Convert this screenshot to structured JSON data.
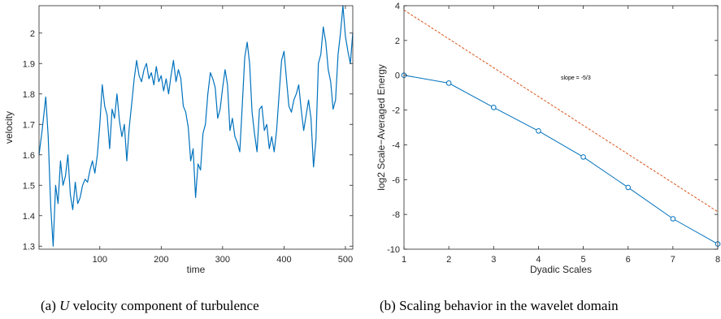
{
  "chart_data": [
    {
      "type": "line",
      "title": "",
      "xlabel": "time",
      "ylabel": "velocity",
      "xlim": [
        1,
        512
      ],
      "ylim": [
        1.29,
        2.09
      ],
      "xticks": [
        100,
        200,
        300,
        400,
        500
      ],
      "yticks": [
        1.3,
        1.4,
        1.5,
        1.6,
        1.7,
        1.8,
        1.9,
        2.0
      ],
      "ytick_labels": [
        "1.3",
        "1.4",
        "1.5",
        "1.6",
        "1.7",
        "1.8",
        "1.9",
        "2"
      ],
      "color": "#0072BD",
      "grid": false,
      "series": [
        {
          "x": [
            1,
            6,
            12,
            16,
            20,
            24,
            28,
            32,
            36,
            40,
            44,
            48,
            52,
            56,
            60,
            64,
            68,
            72,
            76,
            80,
            84,
            88,
            92,
            96,
            100,
            104,
            108,
            112,
            116,
            120,
            124,
            128,
            132,
            136,
            140,
            144,
            148,
            152,
            156,
            160,
            164,
            168,
            172,
            176,
            180,
            184,
            188,
            192,
            196,
            200,
            204,
            208,
            212,
            216,
            220,
            224,
            228,
            232,
            236,
            240,
            244,
            248,
            252,
            256,
            260,
            264,
            268,
            272,
            276,
            280,
            284,
            288,
            292,
            296,
            300,
            304,
            308,
            312,
            316,
            320,
            324,
            328,
            332,
            336,
            340,
            344,
            348,
            352,
            356,
            360,
            364,
            368,
            372,
            376,
            380,
            384,
            388,
            392,
            396,
            400,
            404,
            408,
            412,
            416,
            420,
            424,
            428,
            432,
            436,
            440,
            444,
            448,
            452,
            456,
            460,
            464,
            468,
            472,
            476,
            480,
            484,
            488,
            492,
            496,
            500,
            504,
            508,
            512
          ],
          "y": [
            1.6,
            1.68,
            1.79,
            1.66,
            1.43,
            1.3,
            1.5,
            1.44,
            1.58,
            1.5,
            1.53,
            1.6,
            1.47,
            1.42,
            1.51,
            1.44,
            1.46,
            1.5,
            1.52,
            1.51,
            1.55,
            1.58,
            1.54,
            1.6,
            1.7,
            1.83,
            1.76,
            1.73,
            1.62,
            1.75,
            1.72,
            1.8,
            1.71,
            1.66,
            1.7,
            1.58,
            1.69,
            1.77,
            1.85,
            1.91,
            1.86,
            1.84,
            1.88,
            1.9,
            1.85,
            1.87,
            1.83,
            1.89,
            1.84,
            1.86,
            1.81,
            1.85,
            1.8,
            1.86,
            1.91,
            1.84,
            1.88,
            1.85,
            1.76,
            1.74,
            1.69,
            1.58,
            1.62,
            1.46,
            1.57,
            1.55,
            1.67,
            1.7,
            1.8,
            1.87,
            1.85,
            1.82,
            1.72,
            1.75,
            1.82,
            1.88,
            1.83,
            1.68,
            1.72,
            1.66,
            1.64,
            1.61,
            1.76,
            1.92,
            1.97,
            1.9,
            1.74,
            1.67,
            1.61,
            1.75,
            1.76,
            1.68,
            1.7,
            1.62,
            1.66,
            1.61,
            1.68,
            1.8,
            1.91,
            1.94,
            1.85,
            1.76,
            1.74,
            1.78,
            1.8,
            1.83,
            1.75,
            1.68,
            1.73,
            1.78,
            1.72,
            1.56,
            1.65,
            1.9,
            1.93,
            2.02,
            1.97,
            1.88,
            1.84,
            1.75,
            1.78,
            1.93,
            2.0,
            2.09,
            1.99,
            1.94,
            1.9,
            2.0
          ]
        }
      ]
    },
    {
      "type": "line",
      "title": "",
      "xlabel": "Dyadic Scales",
      "ylabel": "log2 Scale−Averaged Energy",
      "xlim": [
        1,
        8
      ],
      "ylim": [
        -10,
        4
      ],
      "xticks": [
        1,
        2,
        3,
        4,
        5,
        6,
        7,
        8
      ],
      "yticks": [
        -10,
        -8,
        -6,
        -4,
        -2,
        0,
        2,
        4
      ],
      "grid": false,
      "annotation": "slope = -5/3",
      "series": [
        {
          "style": "solid-with-circle-markers",
          "color": "#0072BD",
          "x": [
            1,
            2,
            3,
            4,
            5,
            6,
            7,
            8
          ],
          "y": [
            0.0,
            -0.45,
            -1.85,
            -3.2,
            -4.7,
            -6.45,
            -8.25,
            -9.7
          ]
        },
        {
          "style": "dashed",
          "color": "#D95319",
          "x": [
            1,
            8
          ],
          "y": [
            3.75,
            -7.85
          ]
        }
      ]
    }
  ],
  "captions": {
    "a_prefix": "(a)",
    "a_var": "U",
    "a_text": "velocity component of turbulence",
    "b": "(b) Scaling behavior in the wavelet domain"
  }
}
